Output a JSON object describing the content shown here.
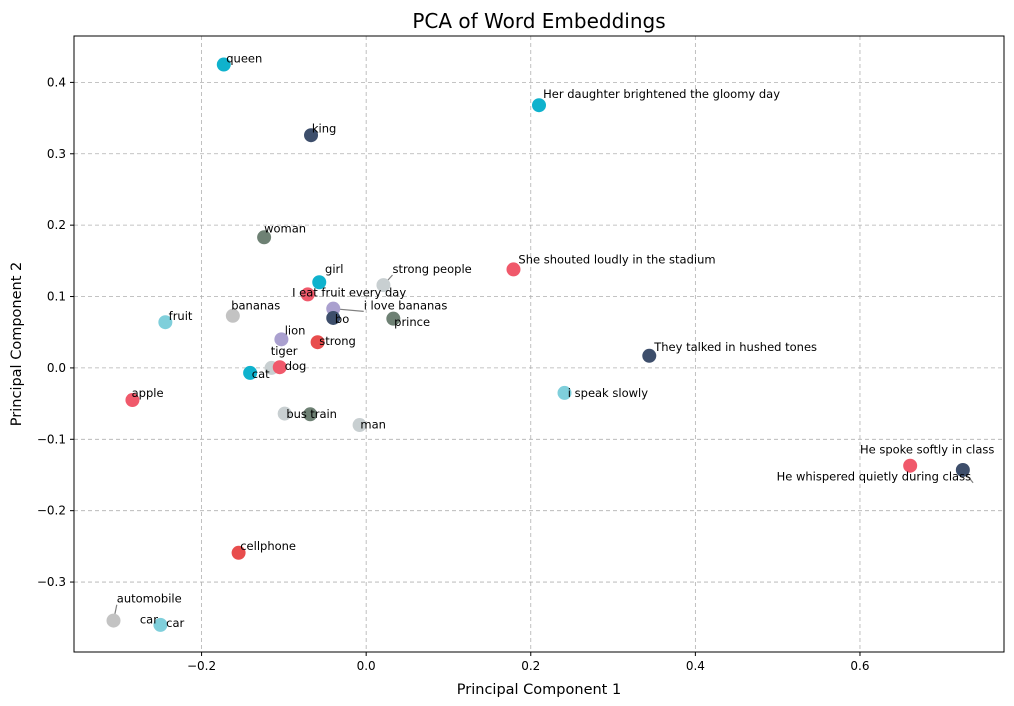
{
  "chart_data": {
    "type": "scatter",
    "title": "PCA of Word Embeddings",
    "xlabel": "Principal Component 1",
    "ylabel": "Principal Component 2",
    "xlim": [
      -0.355,
      0.775
    ],
    "ylim": [
      -0.398,
      0.465
    ],
    "xticks": [
      -0.2,
      0.0,
      0.2,
      0.4,
      0.6
    ],
    "yticks": [
      -0.3,
      -0.2,
      -0.1,
      0.0,
      0.1,
      0.2,
      0.3,
      0.4
    ],
    "xtick_labels": [
      "−0.2",
      "0.0",
      "0.2",
      "0.4",
      "0.6"
    ],
    "ytick_labels": [
      "−0.3",
      "−0.2",
      "−0.1",
      "0.0",
      "0.1",
      "0.2",
      "0.3",
      "0.4"
    ],
    "grid": true,
    "legend": "none",
    "points": [
      {
        "label": "queen",
        "x": -0.173,
        "y": 0.425,
        "color": "#0fb2cd",
        "anchor": "start",
        "tx": -0.17,
        "ty": 0.428,
        "leader": false
      },
      {
        "label": "Her daughter brightened the gloomy day",
        "x": 0.21,
        "y": 0.368,
        "color": "#0fb2cd",
        "anchor": "start",
        "tx": 0.215,
        "ty": 0.378,
        "leader": true
      },
      {
        "label": "king",
        "x": -0.067,
        "y": 0.326,
        "color": "#3d4e6b",
        "anchor": "start",
        "tx": -0.066,
        "ty": 0.33,
        "leader": false
      },
      {
        "label": "woman",
        "x": -0.124,
        "y": 0.183,
        "color": "#6e8174",
        "anchor": "start",
        "tx": -0.124,
        "ty": 0.19,
        "leader": false
      },
      {
        "label": "girl",
        "x": -0.057,
        "y": 0.12,
        "color": "#0fb2cd",
        "anchor": "start",
        "tx": -0.05,
        "ty": 0.133,
        "leader": false
      },
      {
        "label": "strong people",
        "x": 0.021,
        "y": 0.116,
        "color": "#c8cfd1",
        "anchor": "start",
        "tx": 0.032,
        "ty": 0.133,
        "leader": true
      },
      {
        "label": "She shouted loudly in the stadium",
        "x": 0.179,
        "y": 0.138,
        "color": "#f0596b",
        "anchor": "start",
        "tx": 0.185,
        "ty": 0.146,
        "leader": true
      },
      {
        "label": "I eat fruit every day",
        "x": -0.071,
        "y": 0.103,
        "color": "#f0596b",
        "anchor": "start",
        "tx": -0.09,
        "ty": 0.1,
        "leader": false
      },
      {
        "label": "i love bananas",
        "x": -0.04,
        "y": 0.083,
        "color": "#aaa0cf",
        "anchor": "start",
        "tx": -0.003,
        "ty": 0.082,
        "leader": true
      },
      {
        "label": "bananas",
        "x": -0.162,
        "y": 0.073,
        "color": "#c3c3c3",
        "anchor": "start",
        "tx": -0.164,
        "ty": 0.082,
        "leader": false
      },
      {
        "label": "fruit",
        "x": -0.244,
        "y": 0.064,
        "color": "#7fcfdb",
        "anchor": "start",
        "tx": -0.24,
        "ty": 0.067,
        "leader": false
      },
      {
        "label": "bo",
        "x": -0.04,
        "y": 0.07,
        "color": "#3d4e6b",
        "anchor": "start",
        "tx": -0.038,
        "ty": 0.063,
        "leader": false
      },
      {
        "label": "prince",
        "x": 0.033,
        "y": 0.069,
        "color": "#6e8174",
        "anchor": "start",
        "tx": 0.034,
        "ty": 0.059,
        "leader": false
      },
      {
        "label": "lion",
        "x": -0.103,
        "y": 0.04,
        "color": "#aaa0cf",
        "anchor": "start",
        "tx": -0.099,
        "ty": 0.047,
        "leader": false
      },
      {
        "label": "strong",
        "x": -0.059,
        "y": 0.036,
        "color": "#e84d4d",
        "anchor": "start",
        "tx": -0.057,
        "ty": 0.032,
        "leader": false
      },
      {
        "label": "tiger",
        "x": -0.115,
        "y": 0.0,
        "color": "#c8cfd1",
        "anchor": "start",
        "tx": -0.116,
        "ty": 0.018,
        "leader": false
      },
      {
        "label": "dog",
        "x": -0.105,
        "y": 0.001,
        "color": "#f0596b",
        "anchor": "start",
        "tx": -0.099,
        "ty": -0.003,
        "leader": false
      },
      {
        "label": "cat",
        "x": -0.141,
        "y": -0.007,
        "color": "#0fb2cd",
        "anchor": "start",
        "tx": -0.139,
        "ty": -0.014,
        "leader": false
      },
      {
        "label": "apple",
        "x": -0.284,
        "y": -0.045,
        "color": "#f0596b",
        "anchor": "start",
        "tx": -0.285,
        "ty": -0.041,
        "leader": false
      },
      {
        "label": "i speak slowly",
        "x": 0.241,
        "y": -0.035,
        "color": "#7fcfdb",
        "anchor": "start",
        "tx": 0.245,
        "ty": -0.041,
        "leader": false
      },
      {
        "label": "They talked in hushed tones",
        "x": 0.344,
        "y": 0.017,
        "color": "#3d4e6b",
        "anchor": "start",
        "tx": 0.35,
        "ty": 0.024,
        "leader": true
      },
      {
        "label": "bus",
        "x": -0.099,
        "y": -0.064,
        "color": "#c8cfd1",
        "anchor": "start",
        "tx": -0.097,
        "ty": -0.07,
        "leader": false
      },
      {
        "label": "train",
        "x": -0.068,
        "y": -0.065,
        "color": "#6e8174",
        "anchor": "start",
        "tx": -0.068,
        "ty": -0.07,
        "leader": false
      },
      {
        "label": "man",
        "x": -0.008,
        "y": -0.08,
        "color": "#c8cfd1",
        "anchor": "start",
        "tx": -0.007,
        "ty": -0.085,
        "leader": false
      },
      {
        "label": "He spoke softly in class",
        "x": 0.661,
        "y": -0.137,
        "color": "#f0596b",
        "anchor": "start",
        "tx": 0.6,
        "ty": -0.12,
        "leader": false
      },
      {
        "label": "He whispered quietly during class",
        "x": 0.725,
        "y": -0.143,
        "color": "#3d4e6b",
        "anchor": "end",
        "tx": 0.735,
        "ty": -0.158,
        "leader": true
      },
      {
        "label": "cellphone",
        "x": -0.155,
        "y": -0.259,
        "color": "#e84d4d",
        "anchor": "start",
        "tx": -0.153,
        "ty": -0.255,
        "leader": false
      },
      {
        "label": "automobile",
        "x": -0.307,
        "y": -0.354,
        "color": "#c3c3c3",
        "anchor": "start",
        "tx": -0.303,
        "ty": -0.329,
        "leader": true
      },
      {
        "label": "car",
        "x": -0.25,
        "y": -0.36,
        "color": "#7fcfdb",
        "anchor": "start",
        "tx": -0.243,
        "ty": -0.363,
        "leader": false
      },
      {
        "label": "car",
        "x": -0.25,
        "y": -0.36,
        "color": "#7fcfdb",
        "anchor": "end",
        "tx": -0.253,
        "ty": -0.358,
        "leader": true
      }
    ]
  }
}
